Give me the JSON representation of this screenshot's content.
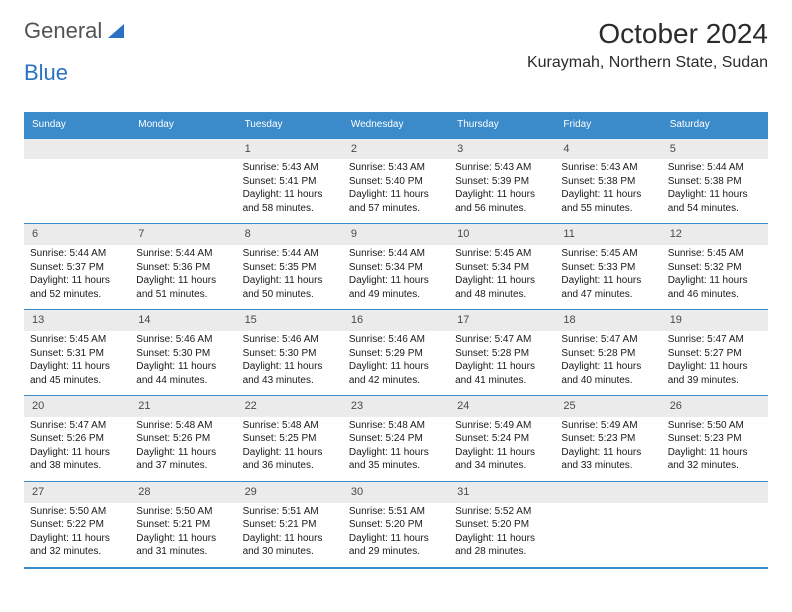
{
  "brand": {
    "part1": "General",
    "part2": "Blue"
  },
  "title": "October 2024",
  "location": "Kuraymah, Northern State, Sudan",
  "colors": {
    "header_bg": "#3b8aca",
    "header_fg": "#ffffff",
    "daynum_bg": "#ebebeb",
    "row_border": "#3b8aca",
    "text": "#1a1a1a"
  },
  "days": [
    "Sunday",
    "Monday",
    "Tuesday",
    "Wednesday",
    "Thursday",
    "Friday",
    "Saturday"
  ],
  "weeks": [
    [
      null,
      null,
      {
        "n": "1",
        "sr": "5:43 AM",
        "ss": "5:41 PM",
        "dl": "11 hours and 58 minutes."
      },
      {
        "n": "2",
        "sr": "5:43 AM",
        "ss": "5:40 PM",
        "dl": "11 hours and 57 minutes."
      },
      {
        "n": "3",
        "sr": "5:43 AM",
        "ss": "5:39 PM",
        "dl": "11 hours and 56 minutes."
      },
      {
        "n": "4",
        "sr": "5:43 AM",
        "ss": "5:38 PM",
        "dl": "11 hours and 55 minutes."
      },
      {
        "n": "5",
        "sr": "5:44 AM",
        "ss": "5:38 PM",
        "dl": "11 hours and 54 minutes."
      }
    ],
    [
      {
        "n": "6",
        "sr": "5:44 AM",
        "ss": "5:37 PM",
        "dl": "11 hours and 52 minutes."
      },
      {
        "n": "7",
        "sr": "5:44 AM",
        "ss": "5:36 PM",
        "dl": "11 hours and 51 minutes."
      },
      {
        "n": "8",
        "sr": "5:44 AM",
        "ss": "5:35 PM",
        "dl": "11 hours and 50 minutes."
      },
      {
        "n": "9",
        "sr": "5:44 AM",
        "ss": "5:34 PM",
        "dl": "11 hours and 49 minutes."
      },
      {
        "n": "10",
        "sr": "5:45 AM",
        "ss": "5:34 PM",
        "dl": "11 hours and 48 minutes."
      },
      {
        "n": "11",
        "sr": "5:45 AM",
        "ss": "5:33 PM",
        "dl": "11 hours and 47 minutes."
      },
      {
        "n": "12",
        "sr": "5:45 AM",
        "ss": "5:32 PM",
        "dl": "11 hours and 46 minutes."
      }
    ],
    [
      {
        "n": "13",
        "sr": "5:45 AM",
        "ss": "5:31 PM",
        "dl": "11 hours and 45 minutes."
      },
      {
        "n": "14",
        "sr": "5:46 AM",
        "ss": "5:30 PM",
        "dl": "11 hours and 44 minutes."
      },
      {
        "n": "15",
        "sr": "5:46 AM",
        "ss": "5:30 PM",
        "dl": "11 hours and 43 minutes."
      },
      {
        "n": "16",
        "sr": "5:46 AM",
        "ss": "5:29 PM",
        "dl": "11 hours and 42 minutes."
      },
      {
        "n": "17",
        "sr": "5:47 AM",
        "ss": "5:28 PM",
        "dl": "11 hours and 41 minutes."
      },
      {
        "n": "18",
        "sr": "5:47 AM",
        "ss": "5:28 PM",
        "dl": "11 hours and 40 minutes."
      },
      {
        "n": "19",
        "sr": "5:47 AM",
        "ss": "5:27 PM",
        "dl": "11 hours and 39 minutes."
      }
    ],
    [
      {
        "n": "20",
        "sr": "5:47 AM",
        "ss": "5:26 PM",
        "dl": "11 hours and 38 minutes."
      },
      {
        "n": "21",
        "sr": "5:48 AM",
        "ss": "5:26 PM",
        "dl": "11 hours and 37 minutes."
      },
      {
        "n": "22",
        "sr": "5:48 AM",
        "ss": "5:25 PM",
        "dl": "11 hours and 36 minutes."
      },
      {
        "n": "23",
        "sr": "5:48 AM",
        "ss": "5:24 PM",
        "dl": "11 hours and 35 minutes."
      },
      {
        "n": "24",
        "sr": "5:49 AM",
        "ss": "5:24 PM",
        "dl": "11 hours and 34 minutes."
      },
      {
        "n": "25",
        "sr": "5:49 AM",
        "ss": "5:23 PM",
        "dl": "11 hours and 33 minutes."
      },
      {
        "n": "26",
        "sr": "5:50 AM",
        "ss": "5:23 PM",
        "dl": "11 hours and 32 minutes."
      }
    ],
    [
      {
        "n": "27",
        "sr": "5:50 AM",
        "ss": "5:22 PM",
        "dl": "11 hours and 32 minutes."
      },
      {
        "n": "28",
        "sr": "5:50 AM",
        "ss": "5:21 PM",
        "dl": "11 hours and 31 minutes."
      },
      {
        "n": "29",
        "sr": "5:51 AM",
        "ss": "5:21 PM",
        "dl": "11 hours and 30 minutes."
      },
      {
        "n": "30",
        "sr": "5:51 AM",
        "ss": "5:20 PM",
        "dl": "11 hours and 29 minutes."
      },
      {
        "n": "31",
        "sr": "5:52 AM",
        "ss": "5:20 PM",
        "dl": "11 hours and 28 minutes."
      },
      null,
      null
    ]
  ],
  "labels": {
    "sunrise": "Sunrise:",
    "sunset": "Sunset:",
    "daylight": "Daylight:"
  }
}
